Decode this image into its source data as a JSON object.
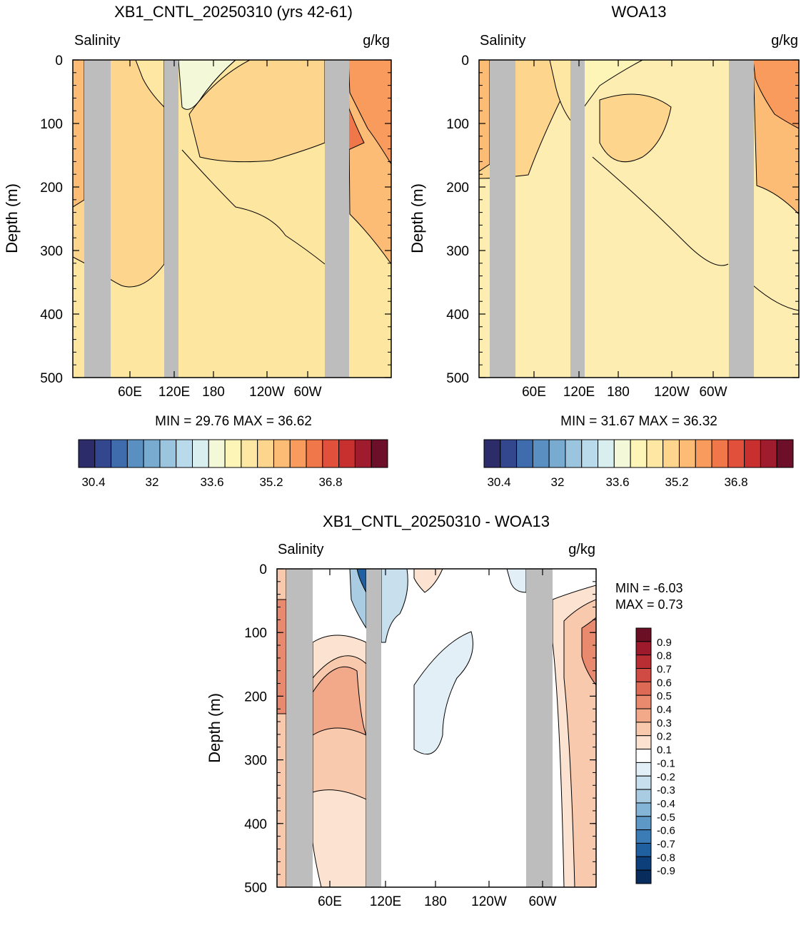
{
  "panels": [
    {
      "id": "model",
      "title": "XB1_CNTL_20250310 (yrs 42-61)",
      "left_label": "Salinity",
      "right_label": "g/kg",
      "ylabel": "Depth (m)",
      "stats": "MIN =  29.76  MAX =  36.62"
    },
    {
      "id": "obs",
      "title": "WOA13",
      "left_label": "Salinity",
      "right_label": "g/kg",
      "ylabel": "Depth (m)",
      "stats": "MIN =  31.67  MAX =  36.32"
    },
    {
      "id": "diff",
      "title": "XB1_CNTL_20250310 - WOA13",
      "left_label": "Salinity",
      "right_label": "g/kg",
      "ylabel": "Depth (m)",
      "stats_min": "MIN =  -6.03",
      "stats_max": "MAX =    0.73"
    }
  ],
  "chart_data": [
    {
      "type": "heatmap",
      "title": "XB1_CNTL_20250310 (yrs 42-61)",
      "ylabel": "Depth (m)",
      "ylim": [
        500,
        0
      ],
      "yticks": [
        0,
        100,
        200,
        300,
        400,
        500
      ],
      "xticks": [
        "60E",
        "120E",
        "180",
        "120W",
        "60W"
      ],
      "colorbar": {
        "labels": [
          "30.4",
          "32",
          "33.6",
          "35.2",
          "36.8"
        ],
        "colors": [
          "#2c2c6b",
          "#33478f",
          "#3f6cac",
          "#5a8fc2",
          "#79abd1",
          "#9bc4df",
          "#b9daea",
          "#d9eeee",
          "#f3f9d8",
          "#fdf5b8",
          "#fde7a2",
          "#fdd58d",
          "#fdbc75",
          "#f89b5d",
          "#f07749",
          "#e0503b",
          "#c7302f",
          "#9e1c2e",
          "#6e0f2a"
        ]
      },
      "min": 29.76,
      "max": 36.62
    },
    {
      "type": "heatmap",
      "title": "WOA13",
      "ylabel": "Depth (m)",
      "ylim": [
        500,
        0
      ],
      "yticks": [
        0,
        100,
        200,
        300,
        400,
        500
      ],
      "xticks": [
        "60E",
        "120E",
        "180",
        "120W",
        "60W"
      ],
      "colorbar": {
        "labels": [
          "30.4",
          "32",
          "33.6",
          "35.2",
          "36.8"
        ],
        "colors": [
          "#2c2c6b",
          "#33478f",
          "#3f6cac",
          "#5a8fc2",
          "#79abd1",
          "#9bc4df",
          "#b9daea",
          "#d9eeee",
          "#f3f9d8",
          "#fdf5b8",
          "#fde7a2",
          "#fdd58d",
          "#fdbc75",
          "#f89b5d",
          "#f07749",
          "#e0503b",
          "#c7302f",
          "#9e1c2e",
          "#6e0f2a"
        ]
      },
      "min": 31.67,
      "max": 36.32
    },
    {
      "type": "heatmap",
      "title": "XB1_CNTL_20250310 - WOA13",
      "ylabel": "Depth (m)",
      "ylim": [
        500,
        0
      ],
      "yticks": [
        0,
        100,
        200,
        300,
        400,
        500
      ],
      "xticks": [
        "60E",
        "120E",
        "180",
        "120W",
        "60W"
      ],
      "colorbar": {
        "labels": [
          "0.9",
          "0.8",
          "0.7",
          "0.6",
          "0.5",
          "0.4",
          "0.3",
          "0.2",
          "0.1",
          "-0.1",
          "-0.2",
          "-0.3",
          "-0.4",
          "-0.5",
          "-0.6",
          "-0.7",
          "-0.8",
          "-0.9"
        ],
        "colors": [
          "#6b0f25",
          "#9d1a2c",
          "#b92e33",
          "#cf4b43",
          "#dd6a55",
          "#e98a6e",
          "#f2a98a",
          "#f8c9ac",
          "#fce3d1",
          "#ffffff",
          "#e3eff6",
          "#c8e0ee",
          "#a9cce3",
          "#84b4d6",
          "#5e98c6",
          "#3b7cb6",
          "#2160a0",
          "#0d3f7a",
          "#082c5c"
        ]
      },
      "min": -6.03,
      "max": 0.73
    }
  ],
  "colors": {
    "land": "#bdbdbd"
  }
}
